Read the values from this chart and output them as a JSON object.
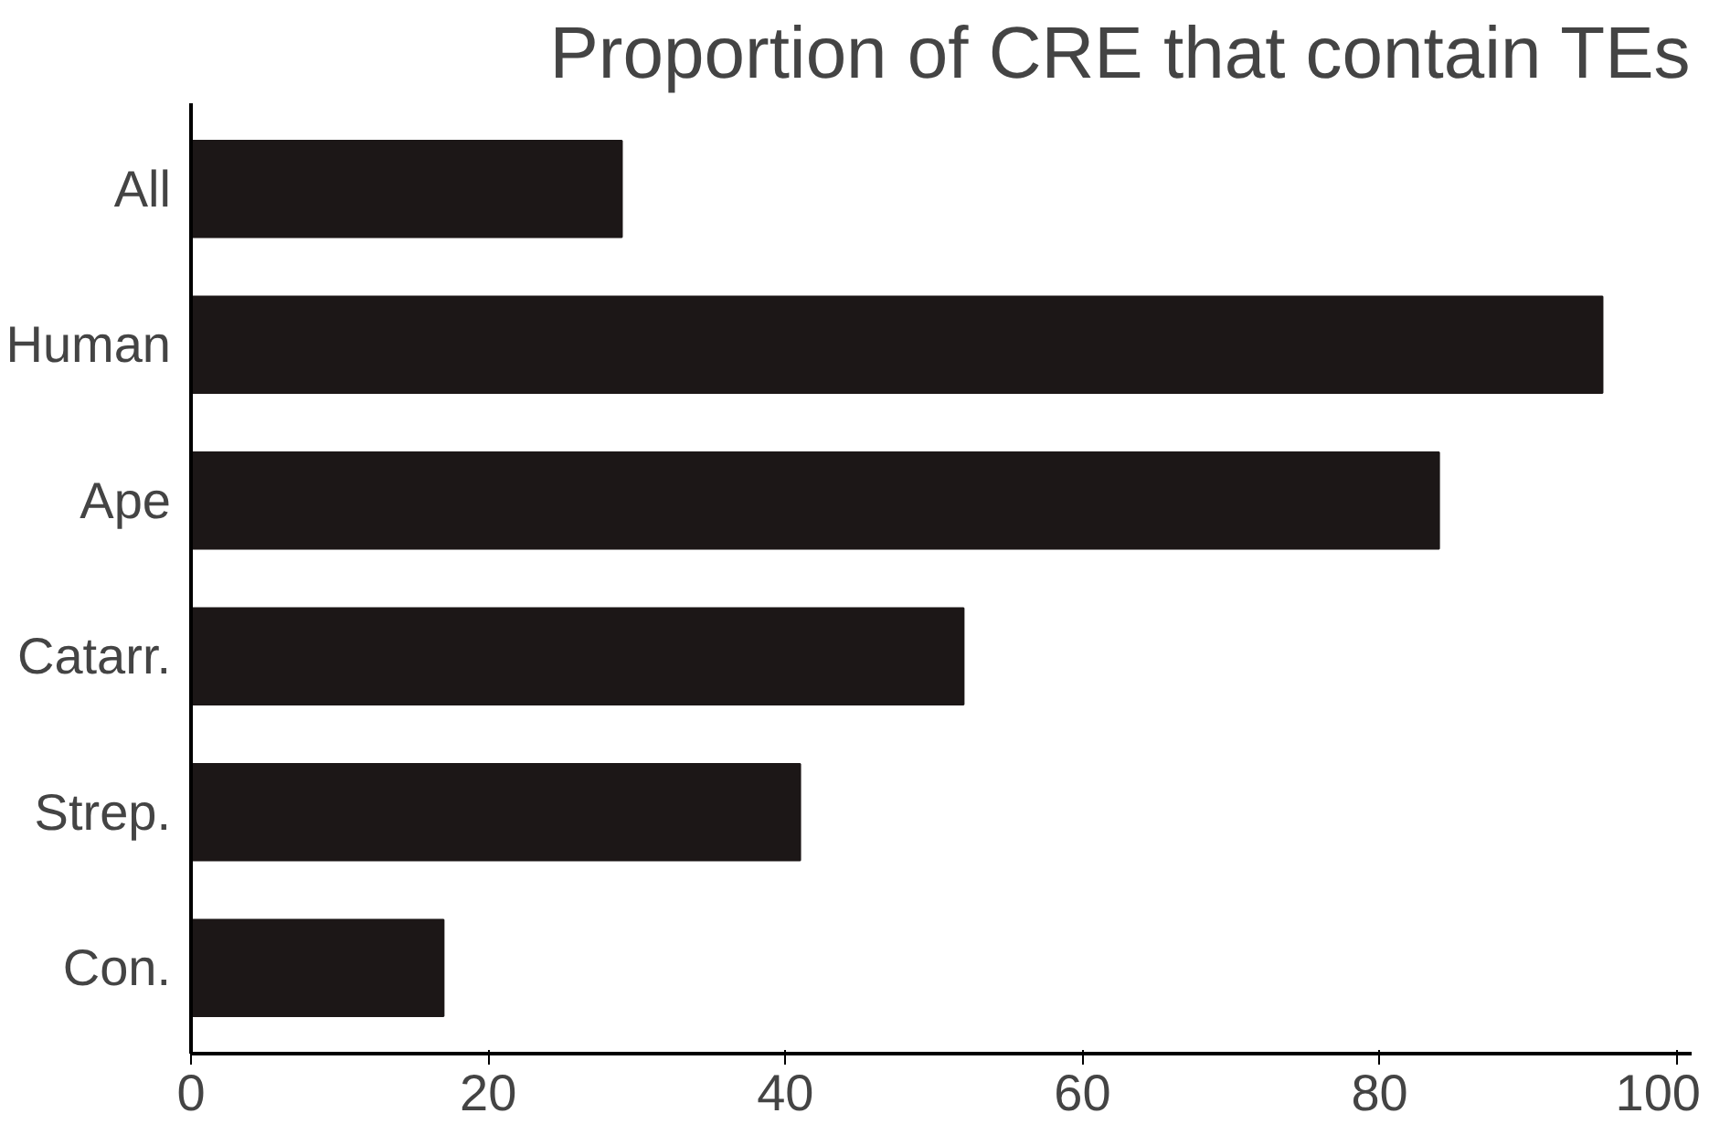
{
  "chart_data": {
    "type": "bar",
    "orientation": "horizontal",
    "title": "Proportion of CRE that contain TEs",
    "categories": [
      "All",
      "Human",
      "Ape",
      "Catarr.",
      "Strep.",
      "Con."
    ],
    "values": [
      29,
      95,
      84,
      52,
      41,
      17
    ],
    "color": "#1c1717",
    "xlim": [
      0,
      101
    ],
    "xticks": [
      0,
      20,
      40,
      60,
      80,
      100
    ],
    "grid": false
  }
}
